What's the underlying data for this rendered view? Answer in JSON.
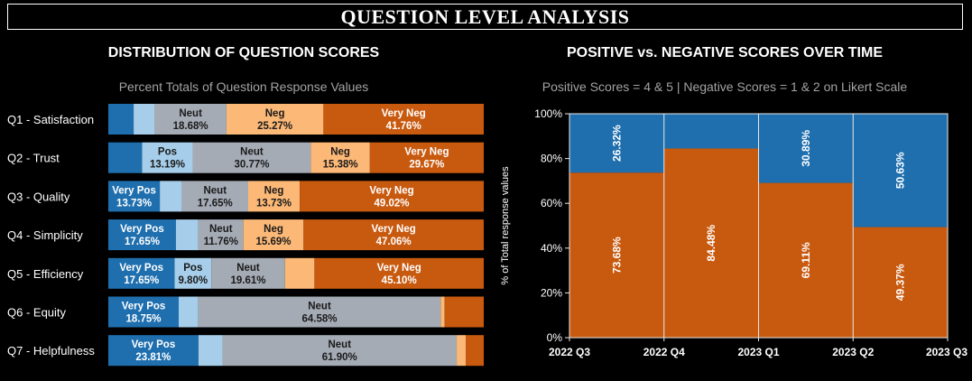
{
  "page_title": "QUESTION  LEVEL ANALYSIS",
  "colors": {
    "very_pos": "#1f6fae",
    "pos": "#a6cde9",
    "neut": "#a5abb5",
    "neg": "#fcb877",
    "very_neg": "#c85a10",
    "positive": "#1f6fae",
    "negative": "#c85a10"
  },
  "left": {
    "title": "DISTRIBUTION OF QUESTION SCORES",
    "subtitle": "Percent Totals of Question Response Values"
  },
  "right": {
    "title": "POSITIVE vs. NEGATIVE SCORES OVER TIME",
    "subtitle": "Positive Scores = 4 & 5 | Negative Scores = 1 & 2 on Likert Scale"
  },
  "chart_data": [
    {
      "type": "bar",
      "orientation": "horizontal-stacked-100",
      "title": "DISTRIBUTION OF QUESTION SCORES",
      "subtitle": "Percent Totals of Question Response Values",
      "categories": [
        "Q1 - Satisfaction",
        "Q2 - Trust",
        "Q3 - Quality",
        "Q4 - Simplicity",
        "Q5 - Efficiency",
        "Q6 - Equity",
        "Q7 - Helpfulness"
      ],
      "series": [
        {
          "name": "Very Pos",
          "values": [
            6.6,
            8.8,
            13.73,
            17.65,
            17.65,
            18.75,
            23.81
          ],
          "labels": [
            false,
            false,
            true,
            true,
            true,
            true,
            true
          ]
        },
        {
          "name": "Pos",
          "values": [
            5.49,
            13.19,
            5.88,
            5.88,
            9.8,
            5.21,
            6.35
          ],
          "labels": [
            false,
            true,
            false,
            false,
            true,
            false,
            false
          ]
        },
        {
          "name": "Neut",
          "values": [
            18.68,
            30.77,
            17.65,
            11.76,
            19.61,
            64.58,
            61.9
          ],
          "labels": [
            true,
            true,
            true,
            true,
            true,
            true,
            true
          ]
        },
        {
          "name": "Neg",
          "values": [
            25.27,
            15.38,
            13.73,
            15.69,
            7.84,
            1.04,
            2.38
          ],
          "labels": [
            true,
            true,
            true,
            true,
            false,
            false,
            false
          ]
        },
        {
          "name": "Very Neg",
          "values": [
            41.76,
            29.67,
            49.02,
            47.06,
            45.1,
            10.42,
            4.76
          ],
          "labels": [
            true,
            true,
            true,
            true,
            true,
            false,
            false
          ]
        }
      ],
      "value_suffix": "%"
    },
    {
      "type": "bar",
      "orientation": "mekko-stacked-100",
      "title": "POSITIVE vs. NEGATIVE SCORES OVER TIME",
      "subtitle": "Positive Scores = 4 & 5 | Negative Scores = 1 & 2 on Likert Scale",
      "ylabel": "% of Total response values",
      "ylim": [
        0,
        100
      ],
      "yticks": [
        "0%",
        "20%",
        "40%",
        "60%",
        "80%",
        "100%"
      ],
      "x_ticks": [
        "2022 Q3",
        "2022 Q4",
        "2023 Q1",
        "2023 Q2",
        "2023 Q3"
      ],
      "periods": [
        {
          "positive": 26.32,
          "negative": 73.68,
          "show_positive_label": true
        },
        {
          "positive": 15.52,
          "negative": 84.48,
          "show_positive_label": false
        },
        {
          "positive": 30.89,
          "negative": 69.11,
          "show_positive_label": true
        },
        {
          "positive": 50.63,
          "negative": 49.37,
          "show_positive_label": true
        }
      ],
      "value_suffix": "%"
    }
  ]
}
